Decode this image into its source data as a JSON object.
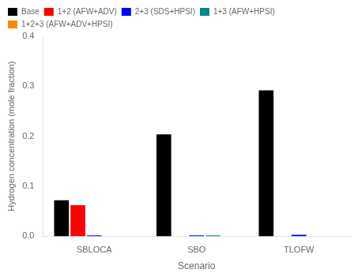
{
  "chart_data": {
    "type": "bar",
    "categories": [
      "SBLOCA",
      "SBO",
      "TLOFW"
    ],
    "series": [
      {
        "name": "Base",
        "color": "#000000",
        "values": [
          0.072,
          0.204,
          0.292
        ]
      },
      {
        "name": "1+2 (AFW+ADV)",
        "color": "#ff0000",
        "values": [
          0.062,
          0.0,
          0.0
        ]
      },
      {
        "name": "2+3 (SDS+HPSI)",
        "color": "#0000ff",
        "values": [
          0.002,
          0.002,
          0.003
        ]
      },
      {
        "name": "1+3 (AFW+HPSI)",
        "color": "#008888",
        "values": [
          0.0,
          0.002,
          0.0
        ]
      },
      {
        "name": "1+2+3 (AFW+ADV+HPSI)",
        "color": "#ff8800",
        "values": [
          0.0,
          0.0,
          0.0
        ]
      }
    ],
    "x_label": "Scenario",
    "y_label": "Hydrogen concentration (mole fraction)",
    "ylim": [
      0.0,
      0.4
    ],
    "yticks": [
      {
        "value": 0.0,
        "label": "0.0"
      },
      0.1,
      0.2,
      0.3,
      0.4
    ],
    "grid": false,
    "legend": "upper left"
  }
}
